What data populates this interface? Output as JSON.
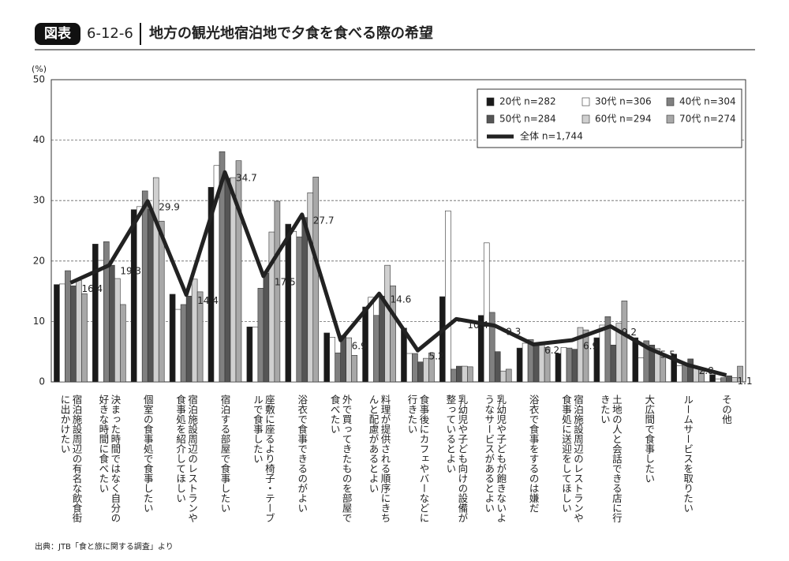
{
  "chart_data": {
    "type": "bar",
    "figure_label": "図表",
    "figure_number": "6-12-6",
    "title": "地方の観光地宿泊地で夕食を食べる際の希望",
    "y_unit": "(%)",
    "source": "出典：JTB「食と旅に関する調査」より",
    "categories": [
      "宿泊施設周辺の有名な飲食街に出かけたい",
      "決まった時間ではなく自分の好きな時間に食べたい",
      "個室の食事処で食事したい",
      "宿泊施設周辺のレストランや食事処を紹介してほしい",
      "宿泊する部屋で食事したい",
      "座敷に座るより椅子・テーブルで食事したい",
      "浴衣で食事できるのがよい",
      "外で買ってきたものを部屋で食べたい",
      "料理が提供される順序にきちんと配慮があるとよい",
      "食事後にカフェやバーなどに行きたい",
      "乳幼児や子ども向けの設備が整っているとよい",
      "乳幼児や子どもが飽きないようなサービスがあるとよい",
      "浴衣で食事をするのは嫌だ",
      "宿泊施設周辺のレストランや食事処に送迎をしてほしい",
      "土地の人と会話できる店に行きたい",
      "大広間で食事したい",
      "ルームサービスを取りたい",
      "その他"
    ],
    "series": [
      {
        "name": "20代 n=282",
        "color": "#1a1a1a",
        "values": [
          16.1,
          22.8,
          28.5,
          14.5,
          32.2,
          9.1,
          26.1,
          8.1,
          12.4,
          8.9,
          14.1,
          11.0,
          5.6,
          4.7,
          7.3,
          7.3,
          4.6,
          1.2
        ]
      },
      {
        "name": "30代 n=306",
        "color": "#ffffff",
        "values": [
          16.2,
          20.1,
          29.0,
          12.0,
          35.8,
          9.1,
          24.9,
          7.4,
          14.0,
          4.7,
          28.3,
          23.0,
          6.4,
          5.7,
          9.4,
          4.0,
          2.7,
          0.5
        ]
      },
      {
        "name": "40代 n=304",
        "color": "#808080",
        "values": [
          18.4,
          23.2,
          31.6,
          12.8,
          38.1,
          15.5,
          24.0,
          4.8,
          11.0,
          4.7,
          2.1,
          11.5,
          7.0,
          5.6,
          10.8,
          6.8,
          3.1,
          0.7
        ]
      },
      {
        "name": "50代 n=284",
        "color": "#555555",
        "values": [
          15.9,
          19.3,
          28.6,
          14.2,
          33.7,
          18.0,
          27.2,
          7.7,
          14.2,
          3.3,
          2.6,
          5.0,
          6.0,
          5.4,
          6.1,
          6.1,
          3.8,
          1.0
        ]
      },
      {
        "name": "60代 n=294",
        "color": "#d0d0d0",
        "values": [
          16.8,
          17.1,
          33.8,
          17.0,
          33.8,
          24.8,
          31.3,
          7.3,
          19.3,
          3.9,
          2.6,
          1.8,
          6.3,
          9.0,
          9.7,
          5.5,
          2.5,
          0.7
        ]
      },
      {
        "name": "70代 n=274",
        "color": "#a8a8a8",
        "values": [
          14.6,
          12.8,
          26.6,
          14.9,
          36.6,
          29.9,
          33.9,
          4.4,
          15.9,
          4.8,
          2.5,
          2.1,
          5.7,
          8.6,
          13.4,
          4.4,
          2.3,
          2.6
        ]
      },
      {
        "name": "全体 n=1,744",
        "type": "line",
        "color": "#222222",
        "values": [
          16.4,
          19.3,
          29.9,
          14.4,
          34.7,
          17.5,
          27.7,
          6.9,
          14.6,
          5.2,
          10.4,
          9.3,
          6.2,
          6.9,
          9.2,
          5.5,
          2.8,
          1.1
        ]
      }
    ],
    "ylim": [
      0,
      50
    ],
    "yticks": [
      0,
      10,
      20,
      30,
      40,
      50
    ],
    "grid": true,
    "legend": "top-right"
  }
}
